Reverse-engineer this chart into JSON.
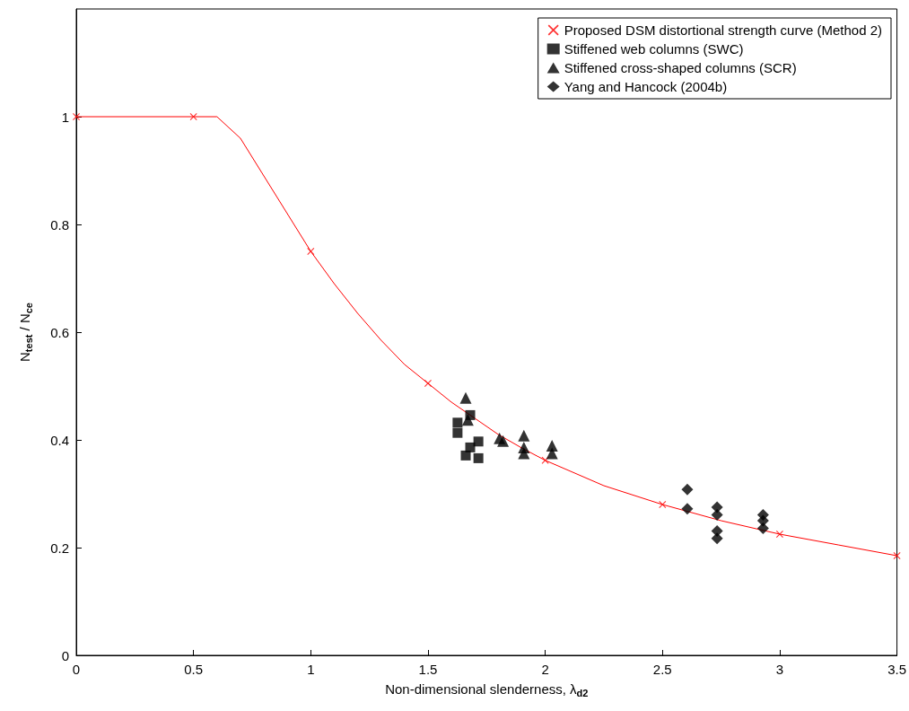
{
  "chart_data": {
    "type": "scatter",
    "xlabel": "Non-dimensional slenderness, λ$_{d2}$",
    "ylabel": "N$_{test}$ / N$_{ce}$",
    "xlim": [
      0,
      3.5
    ],
    "xticks": [
      0,
      0.5,
      1,
      1.5,
      2,
      2.5,
      3,
      3.5
    ],
    "ylim": [
      0,
      1.2
    ],
    "yticks": [
      0,
      0.2,
      0.4,
      0.6,
      0.8,
      1
    ],
    "grid": false,
    "legend": "top right",
    "series": [
      {
        "type": "line",
        "marker": "none",
        "color": "#ff0000",
        "x": [
          0,
          0.5,
          0.6,
          0.7,
          0.8,
          0.9,
          1.0,
          1.1,
          1.2,
          1.3,
          1.4,
          1.5,
          1.6,
          1.7,
          1.8,
          1.9,
          2.0,
          2.25,
          2.5,
          2.75,
          3.0,
          3.25,
          3.5
        ],
        "values": [
          1,
          1,
          1,
          0.96,
          0.89,
          0.82,
          0.75,
          0.69,
          0.635,
          0.585,
          0.54,
          0.505,
          0.47,
          0.44,
          0.41,
          0.385,
          0.362,
          0.315,
          0.28,
          0.25,
          0.225,
          0.205,
          0.185
        ]
      },
      {
        "name": "Proposed DSM distortional strength curve (Method 2)",
        "type": "scatter",
        "marker": "cross",
        "color": "#ff0000",
        "x": [
          0,
          0.5,
          1,
          1.5,
          2,
          2.5,
          3,
          3.5
        ],
        "values": [
          1,
          1,
          0.75,
          0.505,
          0.362,
          0.28,
          0.225,
          0.185
        ]
      },
      {
        "name": "Stiffened web columns (SWC)",
        "type": "scatter",
        "marker": "square",
        "color": "#000000",
        "x": [
          1.626,
          1.626,
          1.68,
          1.715,
          1.68,
          1.661,
          1.715
        ],
        "values": [
          0.432,
          0.413,
          0.446,
          0.397,
          0.386,
          0.371,
          0.366
        ]
      },
      {
        "name": "Stiffened cross-shaped columns (SCR)",
        "type": "scatter",
        "marker": "triangle",
        "color": "#000000",
        "x": [
          1.661,
          1.67,
          1.805,
          1.82,
          1.909,
          1.909,
          1.909,
          2.029,
          2.029
        ],
        "values": [
          0.478,
          0.437,
          0.403,
          0.398,
          0.408,
          0.386,
          0.375,
          0.389,
          0.375
        ]
      },
      {
        "name": "Yang and Hancock (2004b)",
        "type": "scatter",
        "marker": "diamond",
        "color": "#000000",
        "x": [
          2.606,
          2.606,
          2.733,
          2.733,
          2.733,
          2.733,
          2.929,
          2.929,
          2.929
        ],
        "values": [
          0.308,
          0.272,
          0.275,
          0.261,
          0.231,
          0.217,
          0.261,
          0.25,
          0.236
        ]
      }
    ]
  }
}
